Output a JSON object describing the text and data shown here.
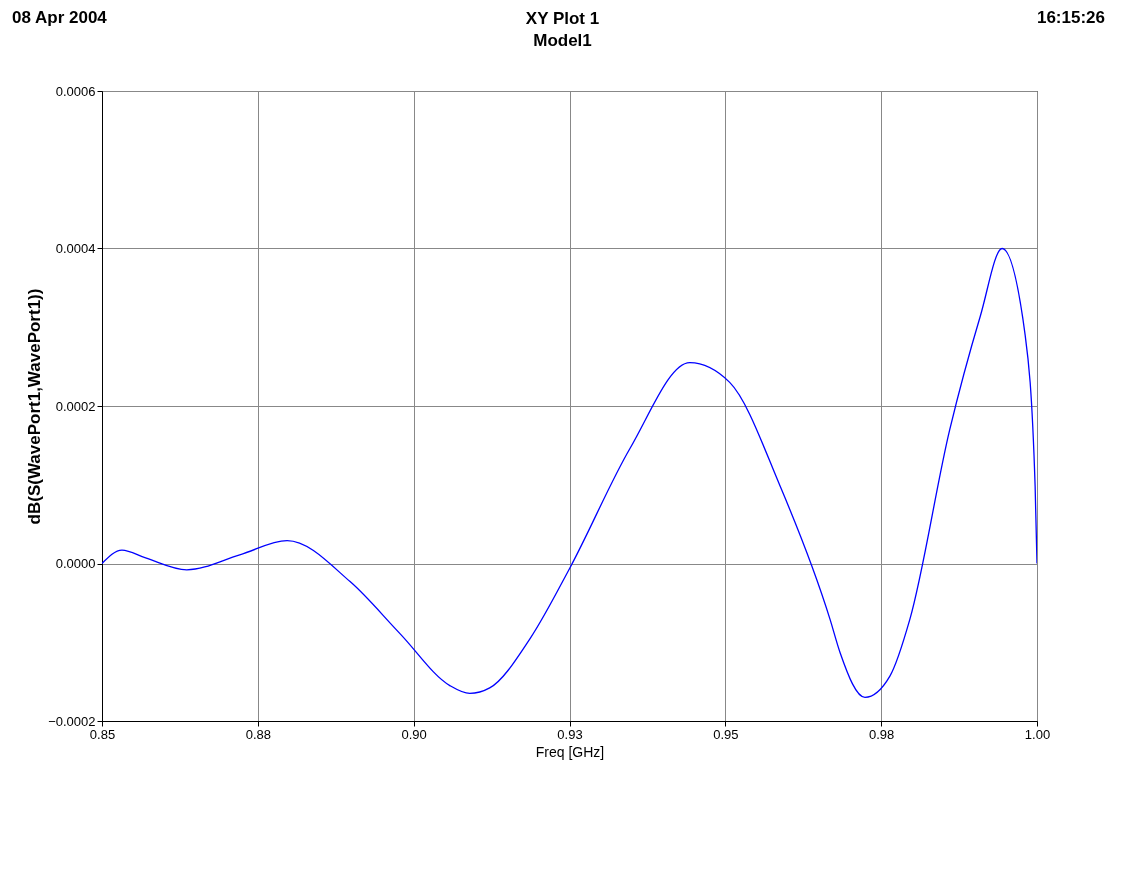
{
  "chart_data": {
    "type": "line",
    "title": "XY Plot 1",
    "subtitle": "Model1",
    "annotations": [
      "08 Apr 2004",
      "16:15:26"
    ],
    "xlabel": "Freq [GHz]",
    "ylabel": "dB(S(WavePort1,WavePort1))",
    "x": [
      0.85,
      0.8532,
      0.857,
      0.8636,
      0.8721,
      0.8797,
      0.8898,
      0.8978,
      0.9058,
      0.909,
      0.9122,
      0.9187,
      0.9251,
      0.9347,
      0.9443,
      0.9507,
      0.9588,
      0.9668,
      0.9684,
      0.9724,
      0.9764,
      0.9796,
      0.986,
      0.9909,
      0.9944,
      0.9981,
      0.9997,
      1.0
    ],
    "series": [
      {
        "color": "#0000ff",
        "values": [
          0,
          1.7e-05,
          7e-06,
          -8e-06,
          1.1e-05,
          2.9e-05,
          -2.3e-05,
          -8.9e-05,
          -0.000155,
          -0.000165,
          -0.000158,
          -9.5e-05,
          -5e-06,
          0.000146,
          0.000255,
          0.00023,
          9.8e-05,
          -7.1e-05,
          -0.000113,
          -0.00017,
          -0.000143,
          -7.1e-05,
          0.00017,
          0.000314,
          0.0004,
          0.00029,
          9.8e-05,
          0
        ]
      }
    ],
    "xlim": [
      0.85,
      1.0
    ],
    "xticks": [
      0.85,
      {
        "value": 0.875,
        "label": "0.88"
      },
      {
        "value": 0.9,
        "label": "0.90"
      },
      {
        "value": 0.925,
        "label": "0.93"
      },
      0.95,
      {
        "value": 0.975,
        "label": "0.98"
      },
      {
        "value": 1.0,
        "label": "1.00"
      }
    ],
    "ylim": [
      -0.0002,
      0.0006
    ],
    "yticks": [
      -0.0002,
      {
        "value": 0,
        "label": "0.0000"
      },
      0.0002,
      0.0004,
      0.0006
    ],
    "grid": true,
    "line_style": "solid",
    "marker": "none"
  }
}
